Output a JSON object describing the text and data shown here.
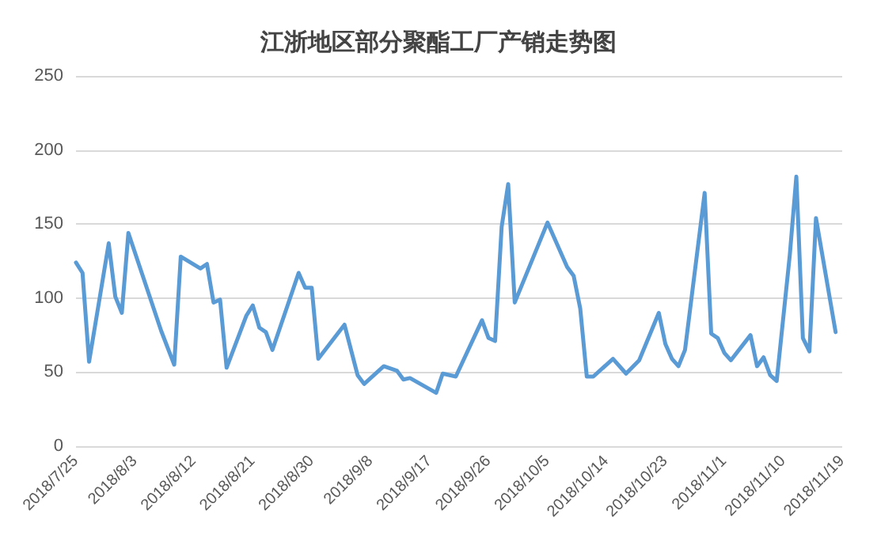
{
  "chart_data": {
    "type": "line",
    "title": "江浙地区部分聚酯工厂产销走势图",
    "x": [
      "2018-07-25",
      "2018-07-26",
      "2018-07-27",
      "2018-07-30",
      "2018-07-31",
      "2018-08-01",
      "2018-08-02",
      "2018-08-07",
      "2018-08-09",
      "2018-08-10",
      "2018-08-13",
      "2018-08-14",
      "2018-08-15",
      "2018-08-16",
      "2018-08-17",
      "2018-08-20",
      "2018-08-21",
      "2018-08-22",
      "2018-08-23",
      "2018-08-24",
      "2018-08-28",
      "2018-08-29",
      "2018-08-30",
      "2018-08-31",
      "2018-09-04",
      "2018-09-06",
      "2018-09-07",
      "2018-09-10",
      "2018-09-12",
      "2018-09-13",
      "2018-09-14",
      "2018-09-18",
      "2018-09-19",
      "2018-09-21",
      "2018-09-25",
      "2018-09-26",
      "2018-09-27",
      "2018-09-28",
      "2018-09-29",
      "2018-09-30",
      "2018-10-05",
      "2018-10-08",
      "2018-10-09",
      "2018-10-10",
      "2018-10-11",
      "2018-10-12",
      "2018-10-15",
      "2018-10-17",
      "2018-10-19",
      "2018-10-22",
      "2018-10-23",
      "2018-10-24",
      "2018-10-25",
      "2018-10-26",
      "2018-10-29",
      "2018-10-30",
      "2018-10-31",
      "2018-11-01",
      "2018-11-02",
      "2018-11-05",
      "2018-11-06",
      "2018-11-07",
      "2018-11-08",
      "2018-11-09",
      "2018-11-11",
      "2018-11-12",
      "2018-11-13",
      "2018-11-14",
      "2018-11-15",
      "2018-11-18"
    ],
    "series": [
      {
        "color": "#5b9bd5",
        "values": [
          124,
          117,
          57,
          137,
          101,
          90,
          144,
          78,
          55,
          128,
          120,
          123,
          97,
          99,
          53,
          88,
          95,
          80,
          77,
          65,
          117,
          107,
          107,
          59,
          82,
          48,
          42,
          54,
          51,
          45,
          46,
          36,
          49,
          47,
          85,
          73,
          71,
          148,
          177,
          97,
          151,
          121,
          115,
          93,
          47,
          47,
          59,
          49,
          58,
          90,
          69,
          59,
          54,
          65,
          171,
          76,
          73,
          63,
          58,
          75,
          54,
          60,
          48,
          44,
          129,
          182,
          73,
          64,
          154,
          77
        ]
      }
    ],
    "xlim": [
      "2018-07-25",
      "2018-11-19"
    ],
    "xticks": [
      {
        "value": "2018-07-25",
        "label": "2018/7/25"
      },
      {
        "value": "2018-08-03",
        "label": "2018/8/3"
      },
      {
        "value": "2018-08-12",
        "label": "2018/8/12"
      },
      {
        "value": "2018-08-21",
        "label": "2018/8/21"
      },
      {
        "value": "2018-08-30",
        "label": "2018/8/30"
      },
      {
        "value": "2018-09-08",
        "label": "2018/9/8"
      },
      {
        "value": "2018-09-17",
        "label": "2018/9/17"
      },
      {
        "value": "2018-09-26",
        "label": "2018/9/26"
      },
      {
        "value": "2018-10-05",
        "label": "2018/10/5"
      },
      {
        "value": "2018-10-14",
        "label": "2018/10/14"
      },
      {
        "value": "2018-10-23",
        "label": "2018/10/23"
      },
      {
        "value": "2018-11-01",
        "label": "2018/11/1"
      },
      {
        "value": "2018-11-10",
        "label": "2018/11/10"
      },
      {
        "value": "2018-11-19",
        "label": "2018/11/19"
      }
    ],
    "ylim": [
      0,
      250
    ],
    "yticks": [
      0,
      50,
      100,
      150,
      200,
      250
    ],
    "grid": "y",
    "marker": "none",
    "line_style": "solid"
  }
}
